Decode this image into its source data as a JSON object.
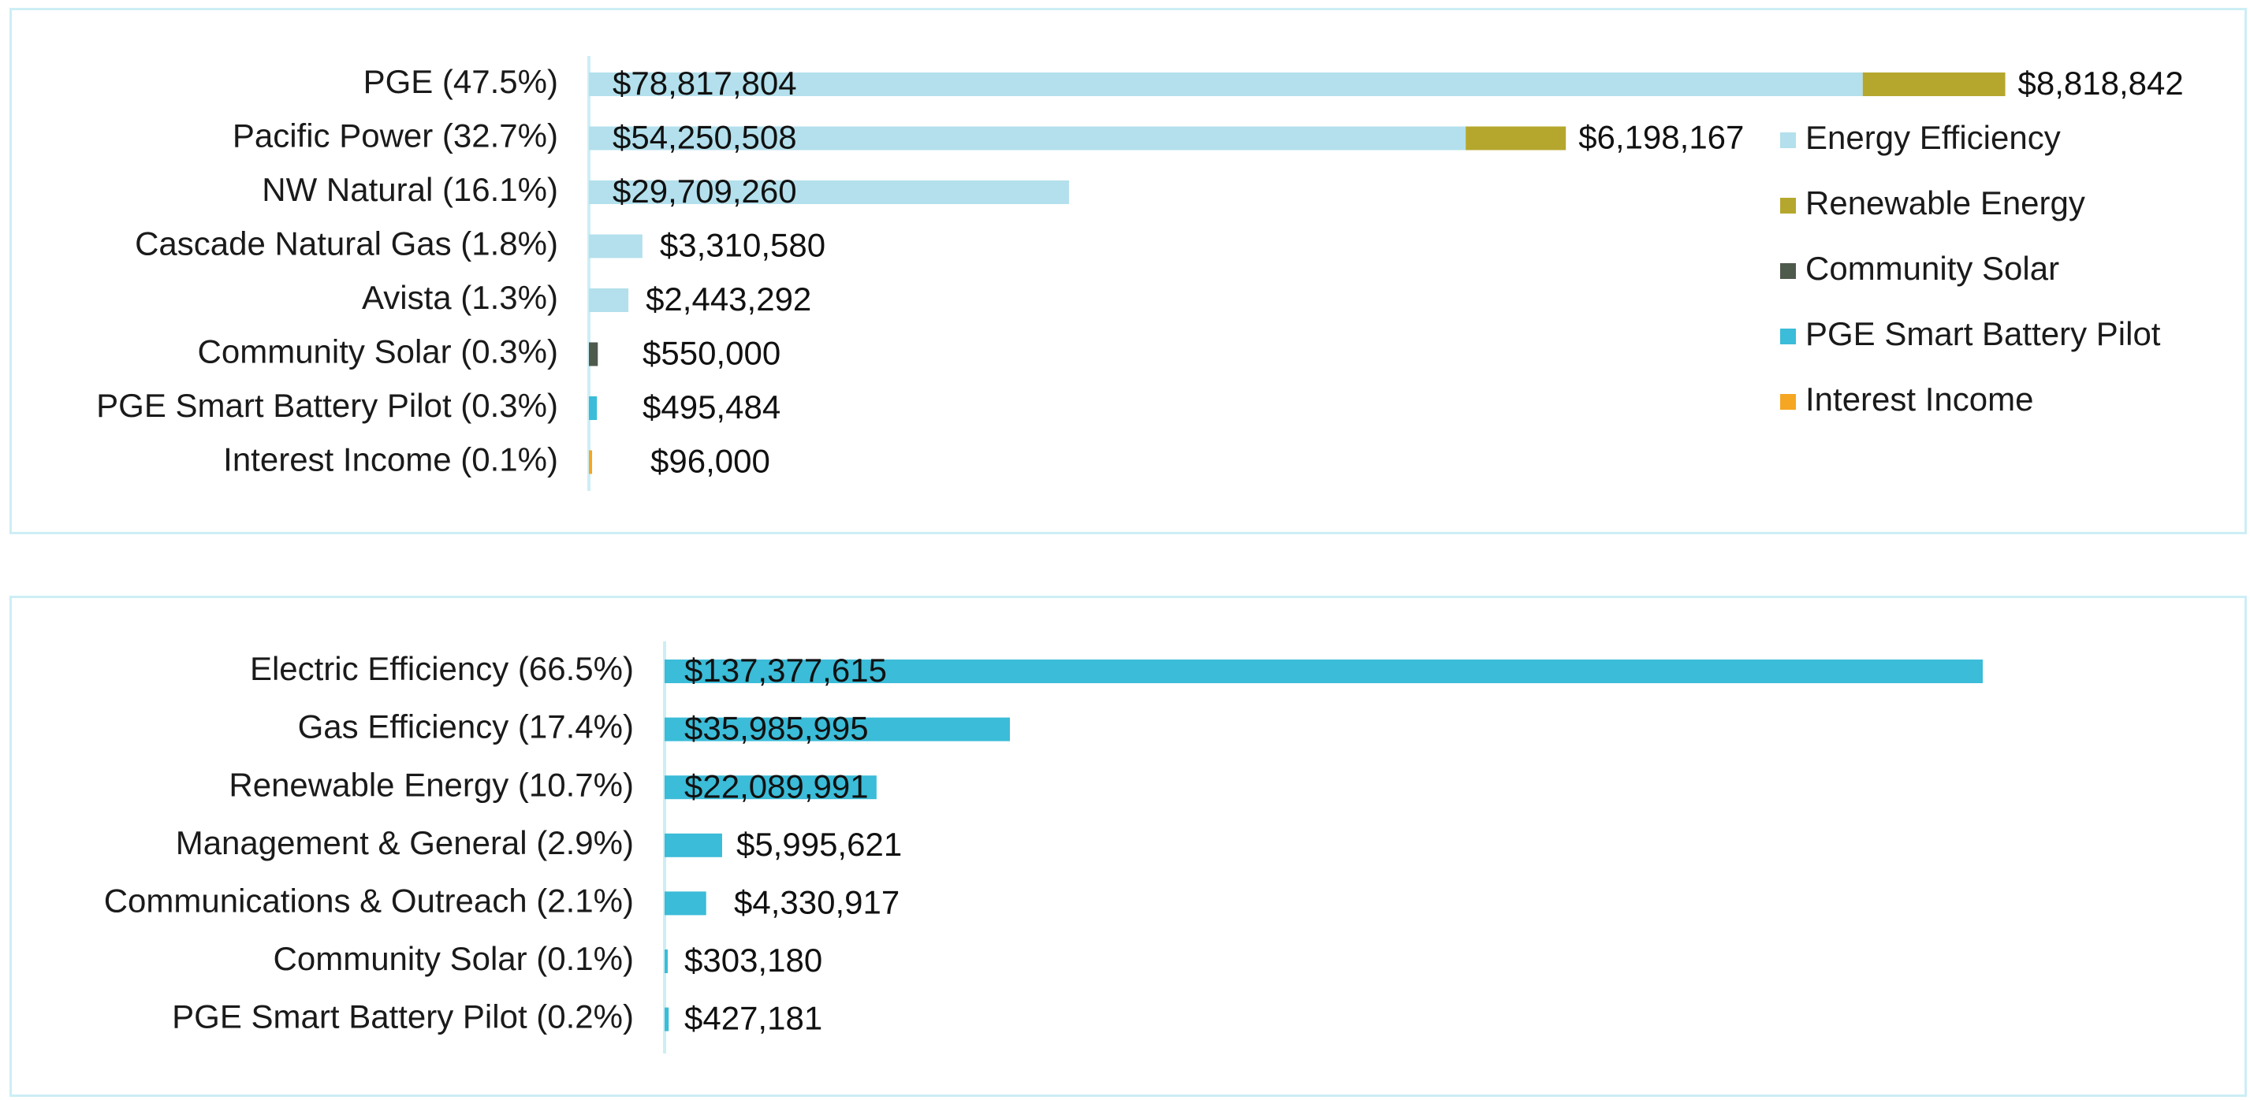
{
  "chart_data": [
    {
      "type": "bar",
      "orientation": "horizontal",
      "stacked": true,
      "categories": [
        "PGE (47.5%)",
        "Pacific Power (32.7%)",
        "NW Natural (16.1%)",
        "Cascade Natural Gas (1.8%)",
        "Avista (1.3%)",
        "Community Solar (0.3%)",
        "PGE Smart Battery Pilot (0.3%)",
        "Interest Income (0.1%)"
      ],
      "series": [
        {
          "name": "Energy Efficiency",
          "color": "#b3e0ec",
          "values": [
            78817804,
            54250508,
            29709260,
            3310580,
            2443292,
            0,
            0,
            0
          ]
        },
        {
          "name": "Renewable Energy",
          "color": "#b5a72e",
          "values": [
            8818842,
            6198167,
            0,
            0,
            0,
            0,
            0,
            0
          ]
        },
        {
          "name": "Community Solar",
          "color": "#4e5a4c",
          "values": [
            0,
            0,
            0,
            0,
            0,
            550000,
            0,
            0
          ]
        },
        {
          "name": "PGE Smart Battery Pilot",
          "color": "#3bbcd8",
          "values": [
            0,
            0,
            0,
            0,
            0,
            0,
            495484,
            0
          ]
        },
        {
          "name": "Interest Income",
          "color": "#f5a623",
          "values": [
            0,
            0,
            0,
            0,
            0,
            0,
            0,
            96000
          ]
        }
      ],
      "data_labels": [
        [
          "$78,817,804",
          "$8,818,842"
        ],
        [
          "$54,250,508",
          "$6,198,167"
        ],
        [
          "$29,709,260"
        ],
        [
          "$3,310,580"
        ],
        [
          "$2,443,292"
        ],
        [
          "$550,000"
        ],
        [
          "$495,484"
        ],
        [
          "$96,000"
        ]
      ],
      "legend_position": "right",
      "grid": false
    },
    {
      "type": "bar",
      "orientation": "horizontal",
      "categories": [
        "Electric Efficiency (66.5%)",
        "Gas Efficiency (17.4%)",
        "Renewable Energy (10.7%)",
        "Management & General (2.9%)",
        "Communications & Outreach (2.1%)",
        "Community Solar (0.1%)",
        "PGE Smart Battery Pilot (0.2%)"
      ],
      "series": [
        {
          "color": "#3bbcd8",
          "values": [
            137377615,
            35985995,
            22089991,
            5995621,
            4330917,
            303180,
            427181
          ]
        }
      ],
      "data_labels": [
        "$137,377,615",
        "$35,985,995",
        "$22,089,991",
        "$5,995,621",
        "$4,330,917",
        "$303,180",
        "$427,181"
      ],
      "grid": false
    }
  ]
}
